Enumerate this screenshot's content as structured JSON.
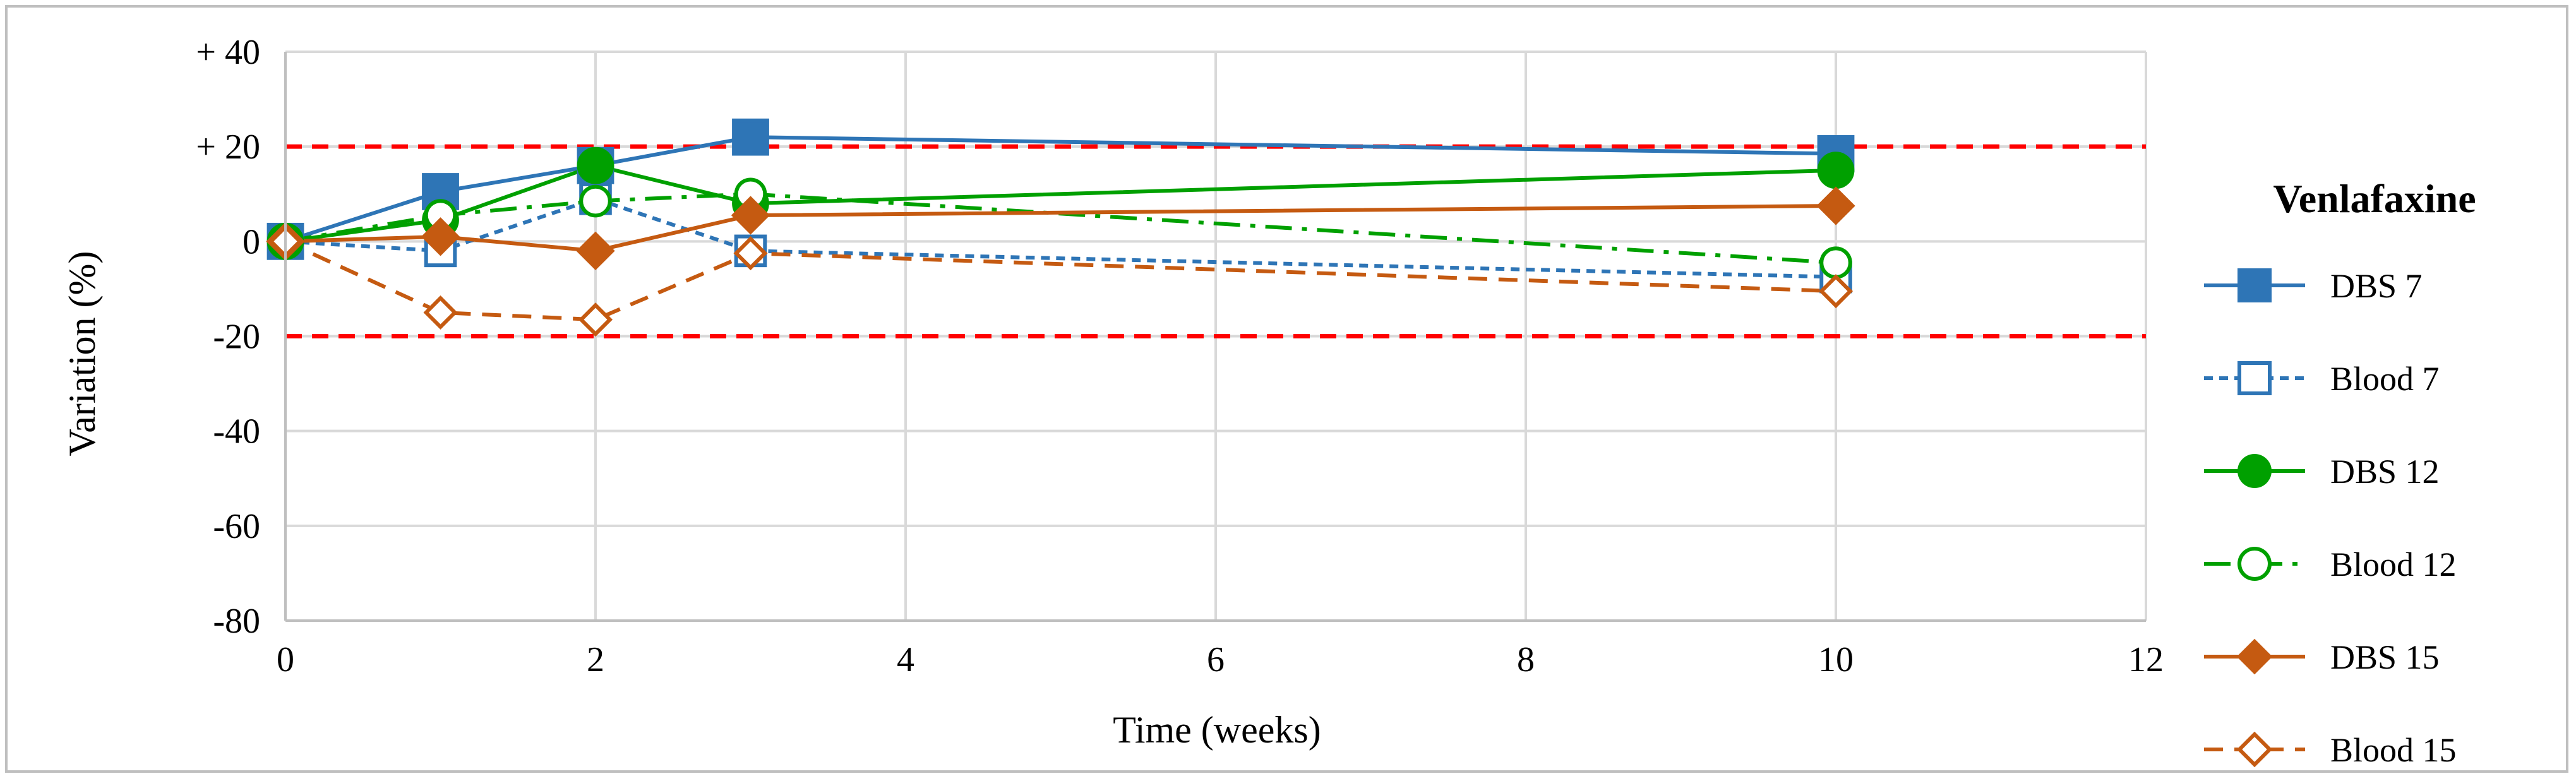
{
  "chart_data": {
    "type": "line",
    "xlabel": "Time (weeks)",
    "ylabel": "Variation (%)",
    "xlim": [
      0,
      12
    ],
    "ylim": [
      -80,
      40
    ],
    "x_ticks": [
      0,
      2,
      4,
      6,
      8,
      10,
      12
    ],
    "x_tick_labels": [
      "0",
      "2",
      "4",
      "6",
      "8",
      "10",
      "12"
    ],
    "y_ticks": [
      40,
      20,
      0,
      -20,
      -40,
      -60,
      -80
    ],
    "y_tick_labels": [
      "+ 40",
      "+ 20",
      "0",
      "-20",
      "-40",
      "-60",
      "-80"
    ],
    "grid": true,
    "reference_lines": [
      {
        "y": 20,
        "color": "#ff0000",
        "style": "dashed"
      },
      {
        "y": -20,
        "color": "#ff0000",
        "style": "dashed"
      }
    ],
    "legend_title": "Venlafaxine",
    "legend_position": "right",
    "x": [
      0,
      1,
      2,
      3,
      10
    ],
    "series": [
      {
        "name": "DBS 7",
        "values": [
          0,
          10.5,
          16,
          22,
          18.5
        ],
        "color": "#2e75b6",
        "marker": "square",
        "filled": true,
        "line": "solid"
      },
      {
        "name": "Blood 7",
        "values": [
          0,
          -2,
          9,
          -2,
          -7.5
        ],
        "color": "#2e75b6",
        "marker": "square",
        "filled": false,
        "line": "dotted"
      },
      {
        "name": "DBS 12",
        "values": [
          0,
          4.5,
          16,
          8,
          15
        ],
        "color": "#00a000",
        "marker": "circle",
        "filled": true,
        "line": "solid"
      },
      {
        "name": "Blood 12",
        "values": [
          0,
          5.5,
          8.5,
          10,
          -4.5
        ],
        "color": "#00a000",
        "marker": "circle",
        "filled": false,
        "line": "dashdot"
      },
      {
        "name": "DBS 15",
        "values": [
          0,
          1,
          -2,
          5.5,
          7.5
        ],
        "color": "#c55a11",
        "marker": "diamond",
        "filled": true,
        "line": "solid"
      },
      {
        "name": "Blood 15",
        "values": [
          0,
          -15,
          -16.5,
          -2.5,
          -10.5
        ],
        "color": "#c55a11",
        "marker": "diamond",
        "filled": false,
        "line": "dashed"
      }
    ]
  }
}
